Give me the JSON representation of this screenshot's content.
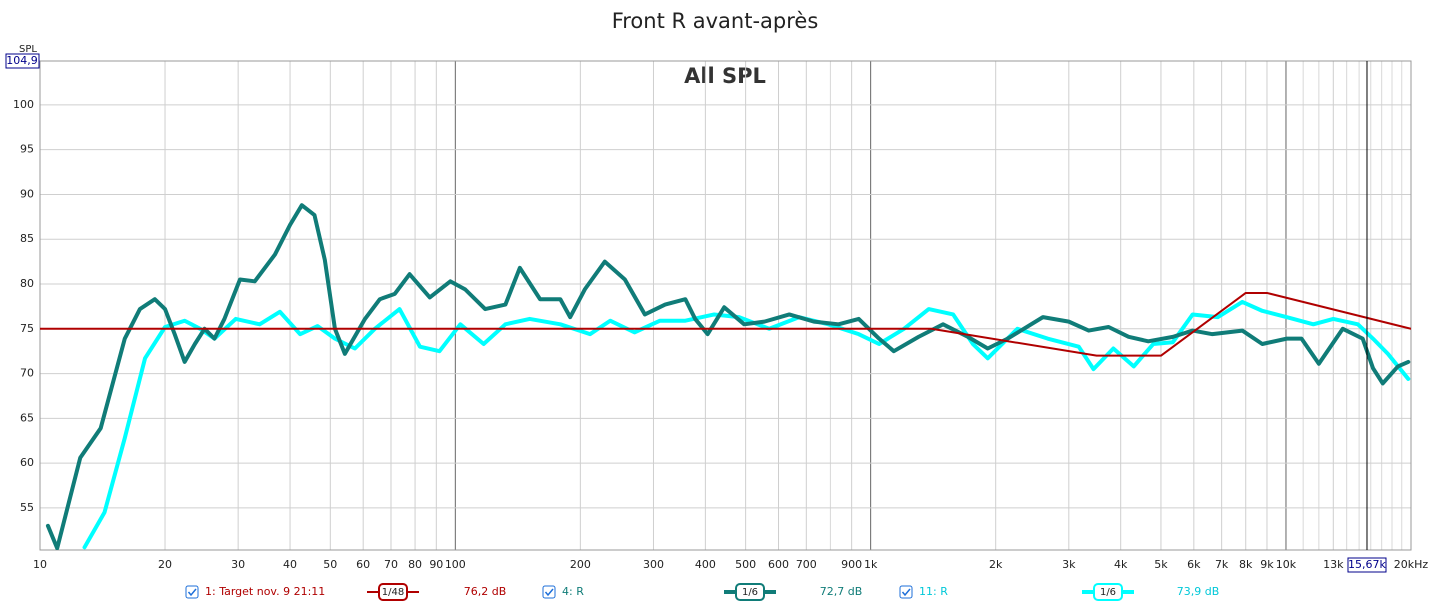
{
  "chart_data": {
    "type": "line",
    "title": "Front R avant-après",
    "subtitle": "All SPL",
    "y_label": "SPL",
    "xlog": true,
    "grid": true,
    "xlim": [
      10,
      20000
    ],
    "ylim": [
      50.3,
      104.9
    ],
    "yticks": [
      55,
      60,
      65,
      70,
      75,
      80,
      85,
      90,
      95,
      100,
      {
        "value": 104.9,
        "label": "104,9"
      }
    ],
    "xticks": [
      10,
      20,
      30,
      40,
      50,
      60,
      70,
      80,
      90,
      100,
      200,
      300,
      400,
      500,
      600,
      700,
      900,
      {
        "value": 1000,
        "label": "1k"
      },
      {
        "value": 2000,
        "label": "2k"
      },
      {
        "value": 3000,
        "label": "3k"
      },
      {
        "value": 4000,
        "label": "4k"
      },
      {
        "value": 5000,
        "label": "5k"
      },
      {
        "value": 6000,
        "label": "6k"
      },
      {
        "value": 7000,
        "label": "7k"
      },
      {
        "value": 8000,
        "label": "8k"
      },
      {
        "value": 9000,
        "label": "9k"
      },
      {
        "value": 10000,
        "label": "10k"
      },
      {
        "value": 13000,
        "label": "13k"
      },
      {
        "value": 20000,
        "label": "20kHz"
      }
    ],
    "xminorticks": [
      800,
      11000,
      12000,
      14000,
      15000,
      16000,
      17000,
      18000,
      19000
    ],
    "cursor": {
      "value": 15670,
      "label": "15,67k"
    },
    "series": [
      {
        "name": "1: Target nov. 9 21:11",
        "color": "#b00000",
        "smoothing": "1/48",
        "level": {
          "value": 76.2,
          "label": "76,2 dB"
        },
        "x": [
          10,
          1400,
          3500,
          5000,
          8000,
          9000,
          20000
        ],
        "values": [
          75,
          75,
          72,
          72,
          79,
          79,
          75
        ]
      },
      {
        "name": "4: R",
        "color": "#107c78",
        "smoothing": "1/6",
        "level": {
          "value": 72.7,
          "label": "72,7 dB"
        },
        "x": [
          10.45,
          11,
          12.5,
          14,
          16,
          17.4,
          18.9,
          20,
          21.1,
          22.3,
          23.6,
          24.9,
          26.3,
          27.8,
          30.3,
          32.9,
          36.8,
          40,
          42.7,
          45.8,
          48.5,
          51.3,
          54.2,
          60.6,
          65.8,
          71.5,
          77.6,
          86.8,
          97.3,
          105.6,
          118,
          132,
          143,
          160,
          179,
          189,
          205,
          229,
          256,
          286,
          320,
          358,
          378,
          405,
          444,
          496,
          555,
          637,
          730,
          837,
          936,
          1048,
          1137,
          1304,
          1494,
          1715,
          1914,
          2137,
          2599,
          3000,
          3350,
          3740,
          4180,
          4660,
          5340,
          5960,
          6650,
          7850,
          8770,
          10050,
          10900,
          12000,
          13700,
          15300,
          16200,
          17100,
          18600,
          19700
        ],
        "values": [
          53,
          50.5,
          60.6,
          63.9,
          73.9,
          77.2,
          78.3,
          77.2,
          74.4,
          71.3,
          73.3,
          75,
          73.9,
          76.1,
          80.5,
          80.3,
          83.3,
          86.6,
          88.8,
          87.7,
          82.7,
          75,
          72.2,
          76.1,
          78.3,
          78.9,
          81.1,
          78.5,
          80.3,
          79.4,
          77.2,
          77.7,
          81.8,
          78.3,
          78.3,
          76.3,
          79.4,
          82.5,
          80.5,
          76.6,
          77.7,
          78.3,
          76.1,
          74.4,
          77.4,
          75.5,
          75.8,
          76.6,
          75.8,
          75.5,
          76.1,
          73.9,
          72.5,
          74.1,
          75.5,
          74.1,
          72.8,
          73.9,
          76.3,
          75.8,
          74.8,
          75.2,
          74.1,
          73.6,
          74.1,
          74.8,
          74.4,
          74.8,
          73.3,
          73.9,
          73.9,
          71.1,
          75,
          73.9,
          70.6,
          68.9,
          70.8,
          71.3
        ]
      },
      {
        "name": "11: R",
        "color": "#00ffff",
        "smoothing": "1/6",
        "level": {
          "value": 73.9,
          "label": "73,9 dB"
        },
        "x": [
          12.8,
          14.3,
          16,
          17.9,
          20,
          22.3,
          24.3,
          26.3,
          29.6,
          33.8,
          37.8,
          42.3,
          46.6,
          51.3,
          57.3,
          64,
          73.4,
          82.2,
          91.6,
          102.8,
          117,
          132,
          151,
          179,
          211,
          236,
          270,
          311,
          358,
          420,
          482,
          570,
          673,
          791,
          936,
          1048,
          1203,
          1380,
          1580,
          1763,
          1914,
          2256,
          2670,
          3170,
          3440,
          3840,
          4300,
          4790,
          5340,
          5960,
          6850,
          7850,
          8770,
          10050,
          11640,
          13000,
          14900,
          16200,
          17600,
          19700
        ],
        "values": [
          50.6,
          54.5,
          62.8,
          71.7,
          75.2,
          75.9,
          75,
          73.9,
          76.1,
          75.5,
          76.9,
          74.4,
          75.3,
          73.9,
          72.8,
          75,
          77.2,
          73,
          72.5,
          75.5,
          73.3,
          75.5,
          76.1,
          75.5,
          74.4,
          75.9,
          74.6,
          75.9,
          75.9,
          76.6,
          76.3,
          75,
          76.3,
          75.5,
          74.4,
          73.3,
          75,
          77.2,
          76.6,
          73.3,
          71.7,
          75,
          73.9,
          73,
          70.5,
          72.8,
          70.8,
          73.3,
          73.5,
          76.6,
          76.3,
          78,
          77,
          76.3,
          75.5,
          76.1,
          75.5,
          73.9,
          72.2,
          69.4
        ]
      }
    ]
  }
}
